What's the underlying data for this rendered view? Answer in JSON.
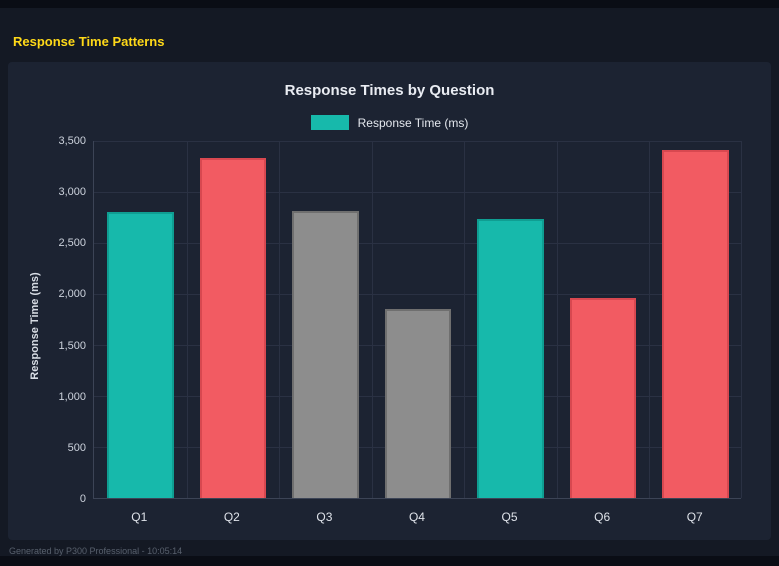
{
  "page": {
    "title": "Response Time Patterns",
    "footer": "Generated by P300 Professional - 10:05:14"
  },
  "chart_data": {
    "type": "bar",
    "title": "Response Times by Question",
    "legend": [
      {
        "label": "Response Time (ms)",
        "color": "#17b9ab"
      }
    ],
    "legend_position": "top",
    "categories": [
      "Q1",
      "Q2",
      "Q3",
      "Q4",
      "Q5",
      "Q6",
      "Q7"
    ],
    "series": [
      {
        "name": "Response Time (ms)",
        "values": [
          2800,
          3320,
          2810,
          1850,
          2730,
          1960,
          3400
        ]
      }
    ],
    "bar_colors": [
      "#17b9ab",
      "#f25b62",
      "#8d8d8d",
      "#8d8d8d",
      "#17b9ab",
      "#f25b62",
      "#f25b62"
    ],
    "bar_border_colors": [
      "#0f9e92",
      "#d84850",
      "#6f6f6f",
      "#6f6f6f",
      "#0f9e92",
      "#d84850",
      "#d84850"
    ],
    "xlabel": "",
    "ylabel": "Response Time (ms)",
    "ylim": [
      0,
      3500
    ],
    "ytick_step": 500,
    "yticks": [
      "0",
      "500",
      "1,000",
      "1,500",
      "2,000",
      "2,500",
      "3,000",
      "3,500"
    ],
    "grid": true
  },
  "colors": {
    "page_bg": "#141924",
    "panel_bg": "#1c2332",
    "strip_bg": "#0a0d15",
    "title_yellow": "#ffd918",
    "teal": "#17b9ab",
    "red": "#f25b62",
    "gray": "#8d8d8d"
  }
}
